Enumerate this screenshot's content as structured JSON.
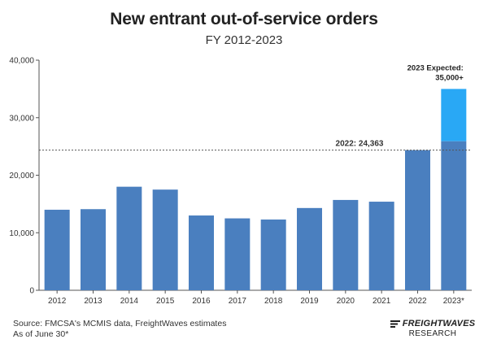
{
  "title": "New entrant out-of-service orders",
  "subtitle": "FY 2012-2023",
  "source_note": "Source: FMCSA's MCMIS data, FreightWaves estimates",
  "date_note": "As of June 30*",
  "logo": {
    "name": "FREIGHTWAVES",
    "sub": "RESEARCH"
  },
  "chart_data": {
    "type": "bar",
    "title": "New entrant out-of-service orders",
    "subtitle": "FY 2012-2023",
    "categories": [
      "2012",
      "2013",
      "2014",
      "2015",
      "2016",
      "2017",
      "2018",
      "2019",
      "2020",
      "2021",
      "2022",
      "2023*"
    ],
    "values": [
      14000,
      14100,
      18000,
      17500,
      13000,
      12500,
      12300,
      14300,
      15700,
      15400,
      24363,
      25900
    ],
    "expected": {
      "category": "2023*",
      "value": 35000,
      "label_line1": "2023 Expected:",
      "label_line2": "35,000+"
    },
    "reference_line": {
      "value": 24363,
      "label": "2022: 24,363",
      "style": "dotted"
    },
    "ylim": [
      0,
      40000
    ],
    "yticks": [
      0,
      10000,
      20000,
      30000,
      40000
    ],
    "ytick_labels": [
      "0",
      "10,000",
      "20,000",
      "30,000",
      "40,000"
    ],
    "xlabel": "",
    "ylabel": "",
    "grid": false,
    "colors": {
      "bar": "#4a7fbf",
      "expected": "#29a8f5",
      "axis": "#555555",
      "refline": "#555555"
    }
  }
}
